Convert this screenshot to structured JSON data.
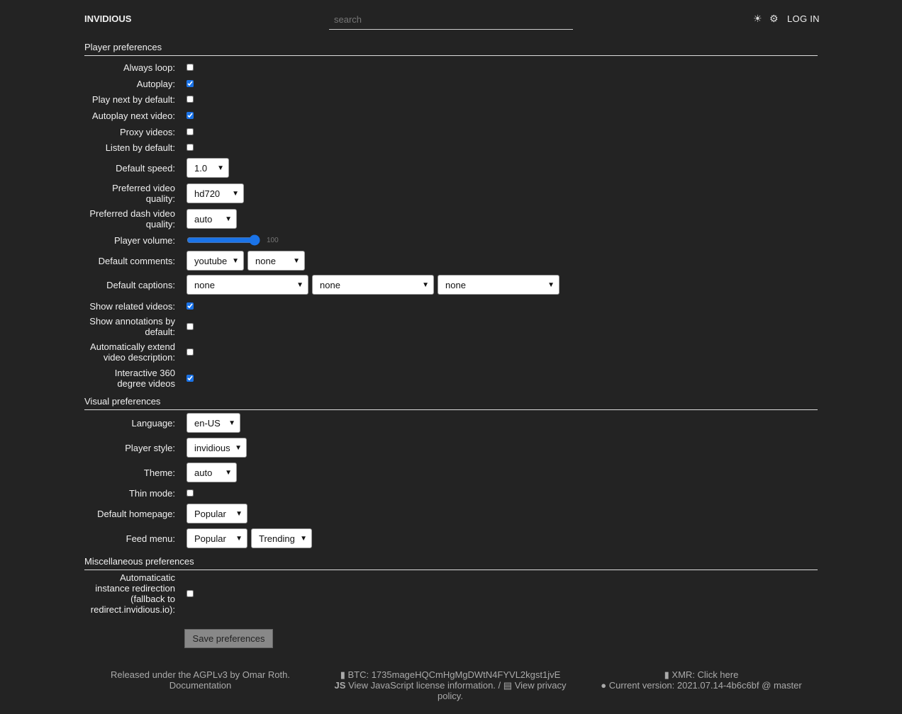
{
  "header": {
    "brand": "INVIDIOUS",
    "search_placeholder": "search",
    "theme_icon": "sun-icon",
    "settings_icon": "gear-icon",
    "login": "LOG IN"
  },
  "sections": {
    "player": "Player preferences",
    "visual": "Visual preferences",
    "misc": "Miscellaneous preferences"
  },
  "rows": [
    {
      "label": "Always loop:",
      "type": "checkbox",
      "checked": false
    },
    {
      "label": "Autoplay:",
      "type": "checkbox",
      "checked": true
    },
    {
      "label": "Play next by default:",
      "type": "checkbox",
      "checked": false
    },
    {
      "label": "Autoplay next video:",
      "type": "checkbox",
      "checked": true
    },
    {
      "label": "Proxy videos:",
      "type": "checkbox",
      "checked": false
    },
    {
      "label": "Listen by default:",
      "type": "checkbox",
      "checked": false
    },
    {
      "label": "Default speed:",
      "type": "select",
      "values": [
        "1.0"
      ]
    },
    {
      "label": "Preferred video quality:",
      "type": "select",
      "values": [
        "hd720"
      ]
    },
    {
      "label": "Preferred dash video quality:",
      "type": "select",
      "values": [
        "auto"
      ]
    },
    {
      "label": "Player volume:",
      "type": "range",
      "value": 100
    },
    {
      "label": "Default comments:",
      "type": "select",
      "values": [
        "youtube",
        "none"
      ]
    },
    {
      "label": "Default captions:",
      "type": "select",
      "values": [
        "none",
        "none",
        "none"
      ]
    },
    {
      "label": "Show related videos:",
      "type": "checkbox",
      "checked": true
    },
    {
      "label": "Show annotations by default:",
      "type": "checkbox",
      "checked": false
    },
    {
      "label": "Automatically extend video description:",
      "type": "checkbox",
      "checked": false
    },
    {
      "label": "Interactive 360 degree videos",
      "type": "checkbox",
      "checked": true
    },
    {
      "label": "Language:",
      "type": "select",
      "values": [
        "en-US"
      ]
    },
    {
      "label": "Player style:",
      "type": "select",
      "values": [
        "invidious"
      ]
    },
    {
      "label": "Theme:",
      "type": "select",
      "values": [
        "auto"
      ]
    },
    {
      "label": "Thin mode:",
      "type": "checkbox",
      "checked": false
    },
    {
      "label": "Default homepage:",
      "type": "select",
      "values": [
        "Popular"
      ]
    },
    {
      "label": "Feed menu:",
      "type": "select",
      "values": [
        "Popular",
        "Trending"
      ]
    },
    {
      "label": "Automaticatic instance redirection (fallback to redirect.invidious.io):",
      "type": "checkbox",
      "checked": false
    }
  ],
  "save_label": "Save preferences",
  "footer": {
    "released": "Released under the AGPLv3 by Omar Roth.",
    "documentation": "Documentation",
    "btc": "BTC: 1735mageHQCmHgMgDWtN4FYVL2kgst1jvE",
    "js_license": "View JavaScript license information.",
    "separator": "/",
    "privacy": "View privacy policy.",
    "xmr": "XMR: Click here",
    "version": "Current version: 2021.07.14-4b6c6bf @ master"
  }
}
